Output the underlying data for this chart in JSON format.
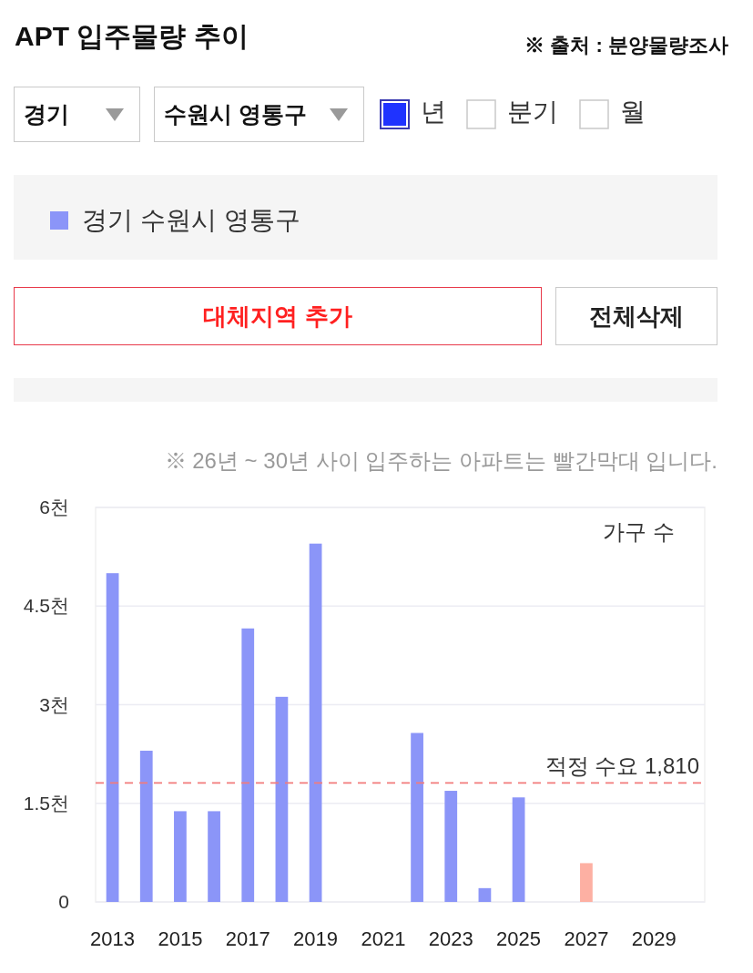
{
  "chart_data": {
    "type": "bar",
    "title": "APT 입주물량 추이",
    "subtitle": "※ 26년 ~ 30년 사이 입주하는 아파트는 빨간막대 입니다.",
    "annotations": [
      "※ 출처 : 분양물량조사",
      "경기",
      "수원시 영통구",
      "년",
      "분기",
      "월",
      "대체지역 추가",
      "전체삭제"
    ],
    "categories": [
      "2013",
      null,
      "2015",
      null,
      "2017",
      null,
      "2019",
      null,
      "2021",
      null,
      "2023",
      null,
      "2025",
      null,
      "2027",
      null,
      "2029",
      null
    ],
    "series": [
      {
        "name": "경기 수원시 영통구",
        "color": "#8b95f8",
        "colors": [
          "#8b95f8",
          "#8b95f8",
          "#8b95f8",
          "#8b95f8",
          "#8b95f8",
          "#8b95f8",
          "#8b95f8",
          null,
          null,
          "#8b95f8",
          "#8b95f8",
          "#8b95f8",
          "#8b95f8",
          null,
          "#fdb0a3",
          null,
          null,
          null
        ],
        "values": [
          5.0,
          2.3,
          1.38,
          1.38,
          4.16,
          3.12,
          5.45,
          0,
          0,
          2.57,
          1.69,
          0.21,
          1.59,
          0,
          0.59,
          0,
          0,
          0
        ]
      }
    ],
    "ylabel": "가구 수",
    "ylim": [
      0,
      6
    ],
    "yticks": [
      0,
      {
        "value": 1.5,
        "label": "1.5천"
      },
      {
        "value": 3,
        "label": "3천"
      },
      {
        "value": 4.5,
        "label": "4.5천"
      },
      {
        "value": 6,
        "label": "6천"
      }
    ],
    "ref_lines": [
      {
        "axis": "y",
        "value": 1.81,
        "label": "적정 수요 1,810",
        "color": "#f27b7b",
        "line_style": "dashed"
      }
    ],
    "grid": "y",
    "legend": "top"
  }
}
